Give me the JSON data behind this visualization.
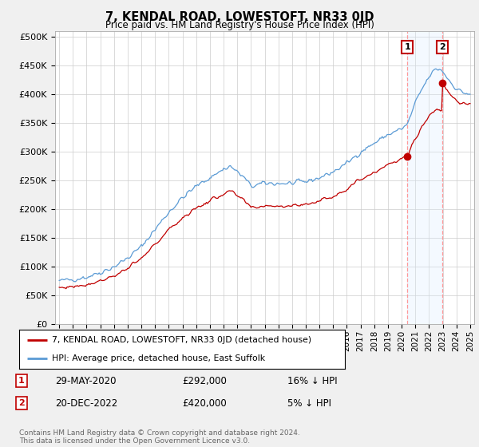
{
  "title": "7, KENDAL ROAD, LOWESTOFT, NR33 0JD",
  "subtitle": "Price paid vs. HM Land Registry's House Price Index (HPI)",
  "ylabel_ticks": [
    "£0",
    "£50K",
    "£100K",
    "£150K",
    "£200K",
    "£250K",
    "£300K",
    "£350K",
    "£400K",
    "£450K",
    "£500K"
  ],
  "ytick_values": [
    0,
    50000,
    100000,
    150000,
    200000,
    250000,
    300000,
    350000,
    400000,
    450000,
    500000
  ],
  "ylim": [
    0,
    510000
  ],
  "xlim_start": 1994.7,
  "xlim_end": 2025.3,
  "hpi_color": "#5b9bd5",
  "price_color": "#c00000",
  "background_color": "#f0f0f0",
  "plot_bg_color": "#ffffff",
  "shade_color": "#ddeeff",
  "legend_label_red": "7, KENDAL ROAD, LOWESTOFT, NR33 0JD (detached house)",
  "legend_label_blue": "HPI: Average price, detached house, East Suffolk",
  "annotation1_date": "29-MAY-2020",
  "annotation1_price": "£292,000",
  "annotation1_hpi": "16% ↓ HPI",
  "annotation2_date": "20-DEC-2022",
  "annotation2_price": "£420,000",
  "annotation2_hpi": "5% ↓ HPI",
  "footer": "Contains HM Land Registry data © Crown copyright and database right 2024.\nThis data is licensed under the Open Government Licence v3.0.",
  "xtick_years": [
    1995,
    1996,
    1997,
    1998,
    1999,
    2000,
    2001,
    2002,
    2003,
    2004,
    2005,
    2006,
    2007,
    2008,
    2009,
    2010,
    2011,
    2012,
    2013,
    2014,
    2015,
    2016,
    2017,
    2018,
    2019,
    2020,
    2021,
    2022,
    2023,
    2024,
    2025
  ],
  "sale1_x": 2020.41,
  "sale1_y": 292000,
  "sale2_x": 2022.96,
  "sale2_y": 420000
}
